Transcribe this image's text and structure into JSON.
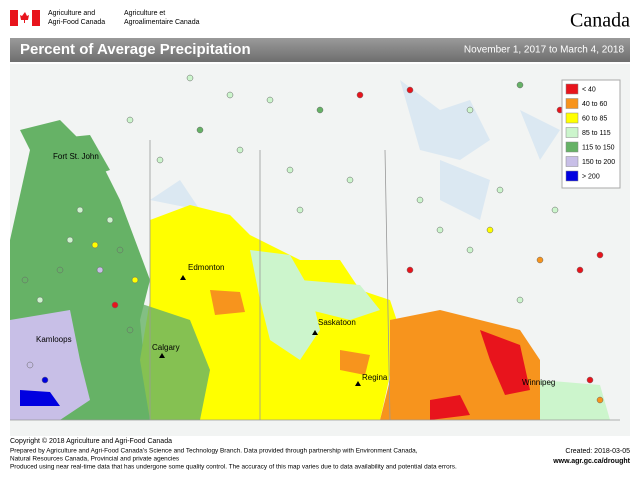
{
  "header": {
    "department_en": [
      "Agriculture and",
      "Agri-Food Canada"
    ],
    "department_fr": [
      "Agriculture et",
      "Agroalimentaire Canada"
    ],
    "wordmark": "Canada"
  },
  "title": "Percent of Average Precipitation",
  "period": "November 1, 2017 to March 4, 2018",
  "legend": [
    {
      "label": "< 40",
      "color": "#e8141c"
    },
    {
      "label": "40 to 60",
      "color": "#f7941d"
    },
    {
      "label": "60 to 85",
      "color": "#ffff00"
    },
    {
      "label": "85 to 115",
      "color": "#ccf5cc"
    },
    {
      "label": "115 to 150",
      "color": "#66b266"
    },
    {
      "label": "150 to 200",
      "color": "#c8bfe7"
    },
    {
      "label": "> 200",
      "color": "#0000e0"
    }
  ],
  "cities": [
    "Fort St. John",
    "Edmonton",
    "Kamloops",
    "Calgary",
    "Saskatoon",
    "Regina",
    "Winnipeg"
  ],
  "footer": {
    "copyright": "Copyright © 2018 Agriculture and Agri-Food Canada",
    "notes": [
      "Prepared by Agriculture and Agri-Food Canada's Science and Technology Branch. Data provided through partnership with Environment Canada,",
      "Natural Resources Canada, Provincial and private agencies",
      "Produced using near real-time data that has undergone some quality control. The accuracy of this map varies due to data availability and potential data errors."
    ],
    "created": "Created: 2018-03-05",
    "url": "www.agr.gc.ca/drought"
  }
}
